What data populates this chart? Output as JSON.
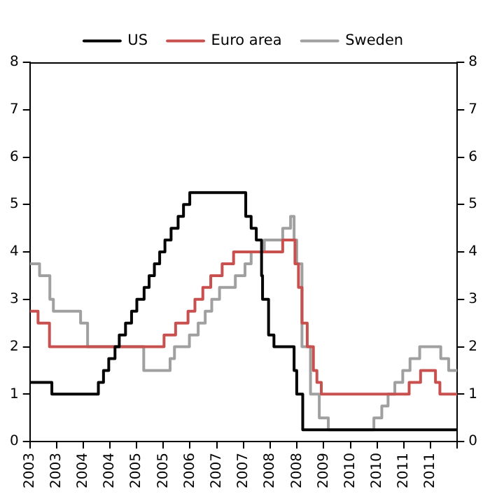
{
  "chart_data": {
    "type": "step",
    "xlim": [
      "2003-01-01",
      "2012-05-01"
    ],
    "xticks": [
      {
        "value": "2003-01",
        "label": "2003"
      },
      {
        "value": "2003-08",
        "label": "2003"
      },
      {
        "value": "2004-03",
        "label": "2004"
      },
      {
        "value": "2004-10",
        "label": "2004"
      },
      {
        "value": "2005-05",
        "label": "2005"
      },
      {
        "value": "2005-12",
        "label": "2005"
      },
      {
        "value": "2006-07",
        "label": "2006"
      },
      {
        "value": "2007-02",
        "label": "2007"
      },
      {
        "value": "2007-09",
        "label": "2007"
      },
      {
        "value": "2008-04",
        "label": "2008"
      },
      {
        "value": "2008-11",
        "label": "2008"
      },
      {
        "value": "2009-06",
        "label": "2009"
      },
      {
        "value": "2010-01",
        "label": "2010"
      },
      {
        "value": "2010-08",
        "label": "2010"
      },
      {
        "value": "2011-03",
        "label": "2011"
      },
      {
        "value": "2011-10",
        "label": "2011"
      },
      {
        "value": "2012-05",
        "label": null
      }
    ],
    "ylim": [
      0,
      8
    ],
    "yticks": [
      0,
      1,
      2,
      3,
      4,
      5,
      6,
      7,
      8
    ],
    "y2lim": [
      0,
      8
    ],
    "y2ticks": [
      0,
      1,
      2,
      3,
      4,
      5,
      6,
      7,
      8
    ],
    "grid": false,
    "legend": "top",
    "marker": "none",
    "line_style": "solid",
    "series": [
      {
        "name": "US",
        "color": "#000000",
        "x": [
          "2003-01-01",
          "2003-06-25",
          "2004-06-30",
          "2004-08-10",
          "2004-09-21",
          "2004-11-10",
          "2004-12-14",
          "2005-02-02",
          "2005-03-22",
          "2005-05-03",
          "2005-06-30",
          "2005-08-09",
          "2005-09-20",
          "2005-11-01",
          "2005-12-13",
          "2006-01-31",
          "2006-03-28",
          "2006-05-10",
          "2006-06-29",
          "2007-09-18",
          "2007-10-31",
          "2007-12-11",
          "2008-01-22",
          "2008-01-30",
          "2008-03-18",
          "2008-04-30",
          "2008-10-08",
          "2008-10-29",
          "2008-12-16",
          "2012-05-01"
        ],
        "values": [
          1.25,
          1.0,
          1.25,
          1.5,
          1.75,
          2.0,
          2.25,
          2.5,
          2.75,
          3.0,
          3.25,
          3.5,
          3.75,
          4.0,
          4.25,
          4.5,
          4.75,
          5.0,
          5.25,
          4.75,
          4.5,
          4.25,
          3.5,
          3.0,
          2.25,
          2.0,
          1.5,
          1.0,
          0.25,
          0.25
        ]
      },
      {
        "name": "Euro area",
        "color": "#c8504f",
        "x": [
          "2003-01-01",
          "2003-03-07",
          "2003-06-06",
          "2005-12-06",
          "2006-03-08",
          "2006-06-15",
          "2006-08-09",
          "2006-10-11",
          "2006-12-13",
          "2007-03-14",
          "2007-06-13",
          "2008-07-09",
          "2008-10-15",
          "2008-11-12",
          "2008-12-10",
          "2009-01-21",
          "2009-03-11",
          "2009-04-08",
          "2009-05-13",
          "2011-04-13",
          "2011-07-13",
          "2011-11-09",
          "2011-12-14",
          "2012-05-01"
        ],
        "values": [
          2.75,
          2.5,
          2.0,
          2.25,
          2.5,
          2.75,
          3.0,
          3.25,
          3.5,
          3.75,
          4.0,
          4.25,
          3.75,
          3.25,
          2.5,
          2.0,
          1.5,
          1.25,
          1.0,
          1.25,
          1.5,
          1.25,
          1.0,
          1.0
        ]
      },
      {
        "name": "Sweden",
        "color": "#a0a0a0",
        "x": [
          "2003-01-01",
          "2003-03-19",
          "2003-06-09",
          "2003-07-07",
          "2004-02-09",
          "2004-04-05",
          "2005-06-27",
          "2006-01-23",
          "2006-02-27",
          "2006-06-26",
          "2006-09-04",
          "2006-10-30",
          "2006-12-21",
          "2007-02-21",
          "2007-06-27",
          "2007-09-12",
          "2007-10-31",
          "2008-02-13",
          "2008-07-09",
          "2008-09-10",
          "2008-10-08",
          "2008-10-29",
          "2008-12-10",
          "2009-02-16",
          "2009-04-27",
          "2009-07-08",
          "2010-07-06",
          "2010-09-07",
          "2010-10-27",
          "2010-12-20",
          "2011-02-21",
          "2011-04-20",
          "2011-07-06",
          "2011-12-21",
          "2012-02-22",
          "2012-05-01"
        ],
        "values": [
          3.75,
          3.5,
          3.0,
          2.75,
          2.5,
          2.0,
          1.5,
          1.75,
          2.0,
          2.25,
          2.5,
          2.75,
          3.0,
          3.25,
          3.5,
          3.75,
          4.0,
          4.25,
          4.5,
          4.75,
          4.25,
          3.75,
          2.0,
          1.0,
          0.5,
          0.25,
          0.5,
          0.75,
          1.0,
          1.25,
          1.5,
          1.75,
          2.0,
          1.75,
          1.5,
          1.5
        ]
      }
    ]
  }
}
